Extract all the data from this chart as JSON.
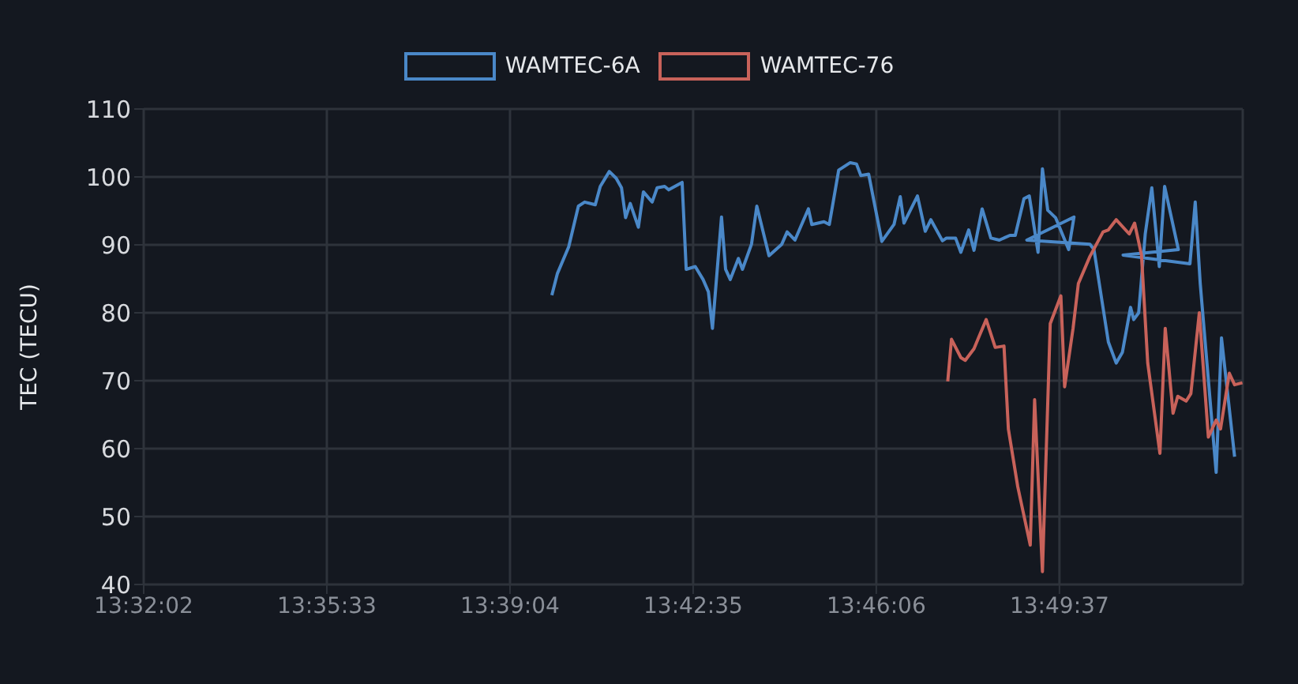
{
  "chart_data": {
    "type": "line",
    "ylabel": "TEC (TECU)",
    "legend": "top",
    "grid": true,
    "marker": "none",
    "line_style": "solid",
    "xlim": [
      13.533889,
      13.8856
    ],
    "xticks": [
      {
        "value": 13.533889,
        "label": "13:32:02"
      },
      {
        "value": 13.5925,
        "label": "13:35:33"
      },
      {
        "value": 13.651111,
        "label": "13:39:04"
      },
      {
        "value": 13.709722,
        "label": "13:42:35"
      },
      {
        "value": 13.768333,
        "label": "13:46:06"
      },
      {
        "value": 13.826944,
        "label": "13:49:37"
      }
    ],
    "ylim": [
      40,
      110
    ],
    "yticks": [
      40,
      50,
      60,
      70,
      80,
      90,
      100,
      110
    ],
    "series": [
      {
        "name": "WAMTEC-6A",
        "color": "#4a88c8",
        "x": [
          13.6645,
          13.6663,
          13.6699,
          13.673,
          13.675,
          13.6784,
          13.68,
          13.6829,
          13.6851,
          13.6868,
          13.6881,
          13.6896,
          13.6922,
          13.6938,
          13.6966,
          13.6982,
          13.7006,
          13.7019,
          13.7062,
          13.7075,
          13.7104,
          13.7129,
          13.7146,
          13.7159,
          13.7188,
          13.7201,
          13.7216,
          13.7242,
          13.7255,
          13.7284,
          13.7301,
          13.734,
          13.7381,
          13.7398,
          13.7423,
          13.7466,
          13.7477,
          13.7516,
          13.7533,
          13.7563,
          13.76,
          13.762,
          13.7634,
          13.7659,
          13.7701,
          13.774,
          13.776,
          13.7772,
          13.7815,
          13.784,
          13.7858,
          13.7895,
          13.7908,
          13.7937,
          13.7954,
          13.7979,
          13.7996,
          13.8022,
          13.805,
          13.8077,
          13.8111,
          13.8128,
          13.8156,
          13.8173,
          13.8201,
          13.8215,
          13.8232,
          13.8257,
          13.8299,
          13.8316,
          13.8165,
          13.8367,
          13.838,
          13.8426,
          13.8451,
          13.8471,
          13.8497,
          13.8507,
          13.8523,
          13.8544,
          13.8565,
          13.8589,
          13.8606,
          13.865,
          13.8473,
          13.8687,
          13.8704,
          13.872,
          13.8771,
          13.8788,
          13.883
        ],
        "values": [
          82.6,
          85.8,
          89.7,
          95.7,
          96.3,
          95.9,
          98.6,
          100.8,
          99.8,
          98.4,
          94.0,
          96.1,
          92.6,
          97.8,
          96.3,
          98.4,
          98.6,
          98.1,
          99.2,
          86.4,
          86.8,
          84.9,
          83.1,
          77.7,
          94.1,
          86.4,
          84.9,
          88.0,
          86.4,
          90.1,
          95.7,
          88.4,
          90.1,
          91.9,
          90.7,
          95.3,
          93.0,
          93.4,
          93.0,
          101.0,
          102.1,
          101.9,
          100.2,
          100.4,
          90.5,
          93.0,
          97.1,
          93.2,
          97.2,
          92.0,
          93.7,
          90.6,
          91.0,
          91.0,
          88.9,
          92.2,
          89.2,
          95.3,
          91.0,
          90.7,
          91.4,
          91.4,
          96.8,
          97.2,
          88.9,
          101.2,
          95.1,
          94.0,
          89.3,
          94.1,
          90.7,
          90.1,
          89.3,
          75.7,
          72.6,
          74.2,
          80.8,
          79.0,
          80.0,
          91.6,
          98.4,
          86.8,
          98.6,
          89.3,
          88.5,
          87.2,
          96.3,
          84.3,
          56.5,
          76.3,
          58.8
        ]
      },
      {
        "name": "WAMTEC-76",
        "color": "#c8625a",
        "x": [
          13.7912,
          13.7924,
          13.7954,
          13.7968,
          13.7996,
          13.8013,
          13.8035,
          13.8064,
          13.8092,
          13.8106,
          13.8136,
          13.8176,
          13.819,
          13.8215,
          13.824,
          13.8274,
          13.8286,
          13.8313,
          13.833,
          13.8367,
          13.8409,
          13.8426,
          13.8451,
          13.8493,
          13.851,
          13.8532,
          13.8552,
          13.8591,
          13.8608,
          13.8633,
          13.8648,
          13.8675,
          13.869,
          13.8717,
          13.8746,
          13.8771,
          13.8785,
          13.8813,
          13.883,
          13.8855
        ],
        "values": [
          69.9,
          76.1,
          73.4,
          73.0,
          74.7,
          76.6,
          79.0,
          74.9,
          75.1,
          62.9,
          54.4,
          45.8,
          67.2,
          41.9,
          78.4,
          82.5,
          69.1,
          77.7,
          84.3,
          88.3,
          91.9,
          92.2,
          93.7,
          91.6,
          93.2,
          88.5,
          72.6,
          59.3,
          77.7,
          65.2,
          67.7,
          67.0,
          68.1,
          80.0,
          61.7,
          64.2,
          62.9,
          71.1,
          69.4,
          69.7
        ]
      }
    ]
  }
}
